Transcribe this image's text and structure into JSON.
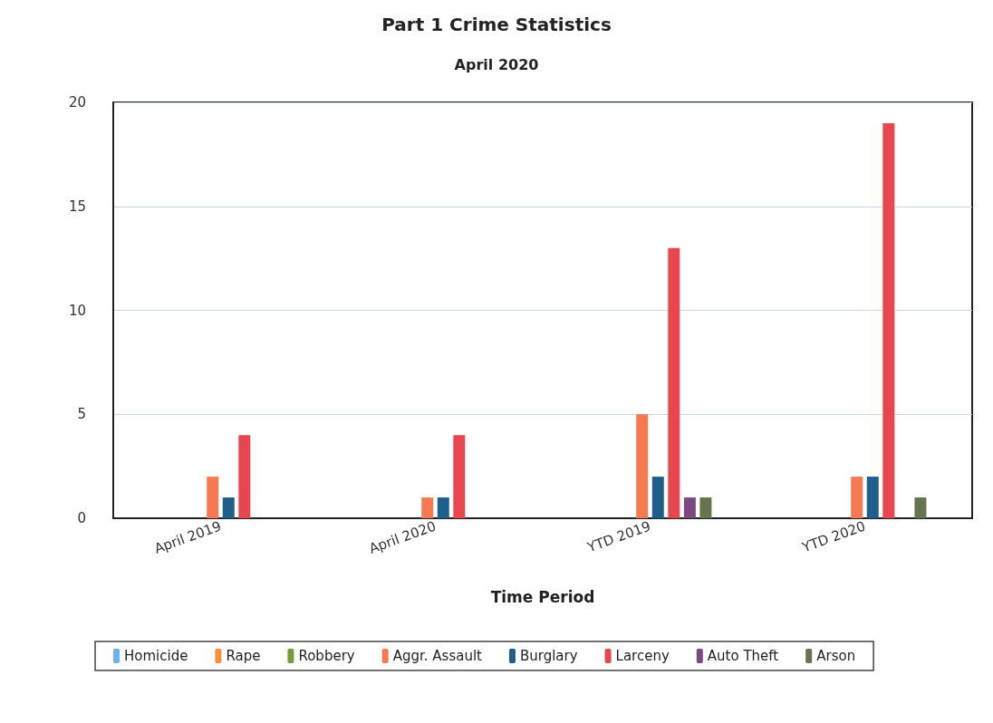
{
  "chart_data": {
    "type": "bar",
    "title": "Part 1 Crime Statistics",
    "subtitle": "April 2020",
    "xlabel": "Time Period",
    "categories": [
      "April 2019",
      "April 2020",
      "YTD 2019",
      "YTD 2020"
    ],
    "series": [
      {
        "name": "Homicide",
        "color": "#6cb4e8",
        "values": [
          0,
          0,
          0,
          0
        ]
      },
      {
        "name": "Rape",
        "color": "#f7913e",
        "values": [
          0,
          0,
          0,
          0
        ]
      },
      {
        "name": "Robbery",
        "color": "#7a9a40",
        "values": [
          0,
          0,
          0,
          0
        ]
      },
      {
        "name": "Aggr. Assault",
        "color": "#f57a52",
        "values": [
          2,
          1,
          5,
          2
        ]
      },
      {
        "name": "Burglary",
        "color": "#1f5f8b",
        "values": [
          1,
          1,
          2,
          2
        ]
      },
      {
        "name": "Larceny",
        "color": "#e8474f",
        "values": [
          4,
          4,
          13,
          19
        ]
      },
      {
        "name": "Auto Theft",
        "color": "#7a4a80",
        "values": [
          0,
          0,
          1,
          0
        ]
      },
      {
        "name": "Arson",
        "color": "#667550",
        "values": [
          0,
          0,
          1,
          1
        ]
      }
    ],
    "ylim": [
      0,
      20
    ],
    "yticks": [
      0,
      5,
      10,
      15,
      20
    ],
    "grid": "y",
    "legend": "bottom"
  }
}
